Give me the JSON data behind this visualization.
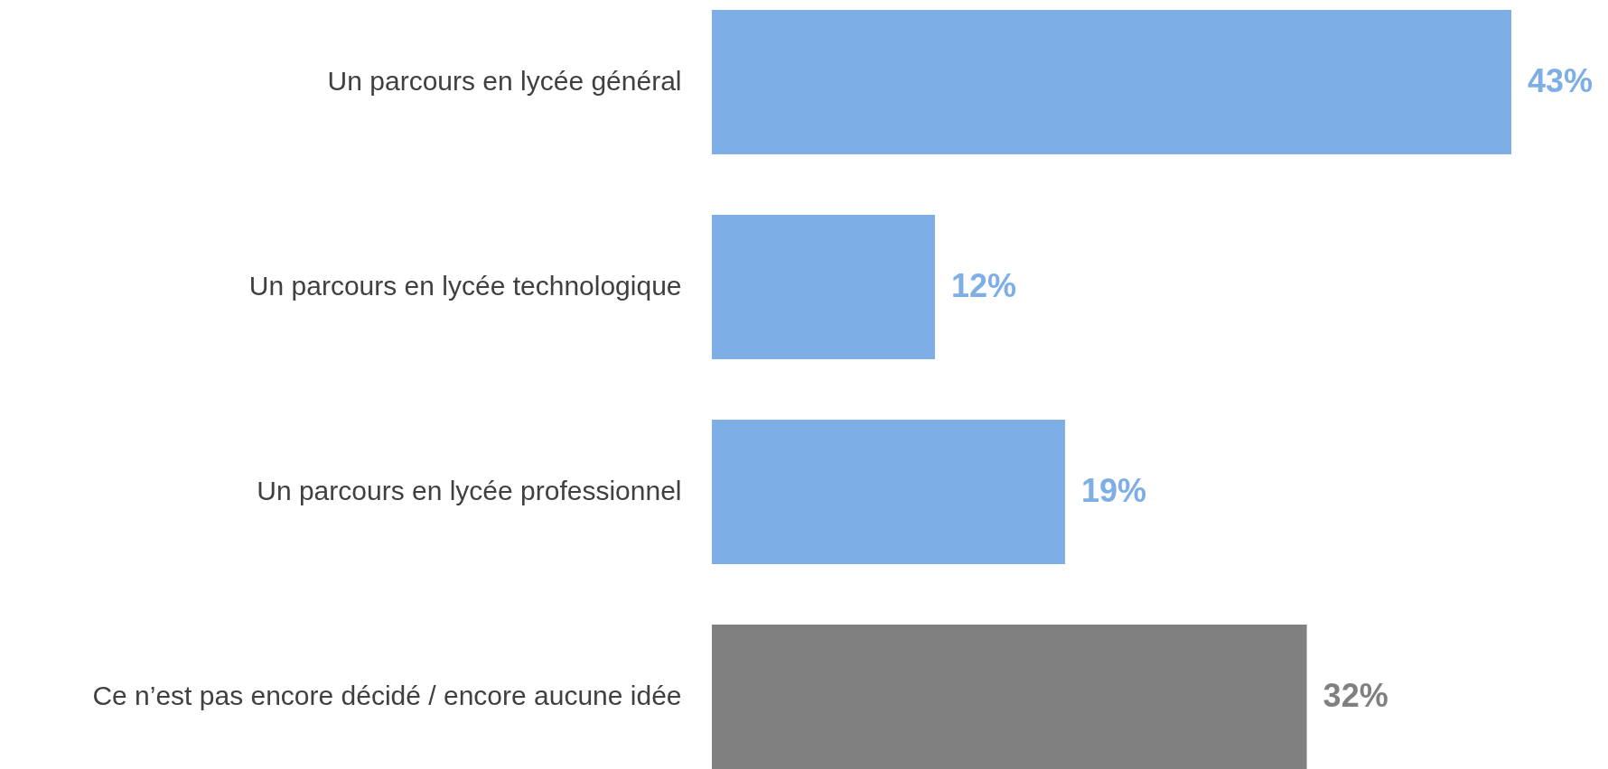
{
  "chart_data": {
    "type": "bar",
    "orientation": "horizontal",
    "categories": [
      "Un parcours en lycée général",
      "Un parcours en lycée technologique",
      "Un parcours en lycée professionnel",
      "Ce n’est pas encore décidé / encore aucune idée"
    ],
    "values": [
      43,
      12,
      19,
      32
    ],
    "colors": [
      "#7eaee6",
      "#7eaee6",
      "#7eaee6",
      "#808080"
    ],
    "value_labels": [
      "43%",
      "12%",
      "19%",
      "32%"
    ]
  }
}
